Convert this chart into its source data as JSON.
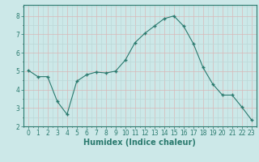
{
  "x": [
    0,
    1,
    2,
    3,
    4,
    5,
    6,
    7,
    8,
    9,
    10,
    11,
    12,
    13,
    14,
    15,
    16,
    17,
    18,
    19,
    20,
    21,
    22,
    23
  ],
  "y": [
    5.05,
    4.7,
    4.7,
    3.35,
    2.65,
    4.45,
    4.8,
    4.95,
    4.9,
    5.0,
    5.6,
    6.55,
    7.05,
    7.45,
    7.85,
    8.0,
    7.45,
    6.5,
    5.2,
    4.3,
    3.7,
    3.7,
    3.05,
    2.35
  ],
  "line_color": "#2a7a6e",
  "marker": "+",
  "marker_size": 3.5,
  "bg_color": "#cce8e8",
  "grid_color_major": "#d8b8b8",
  "grid_color_minor": "#bcd8d8",
  "xlabel": "Humidex (Indice chaleur)",
  "xlim": [
    -0.5,
    23.5
  ],
  "ylim": [
    2.0,
    8.6
  ],
  "yticks": [
    2,
    3,
    4,
    5,
    6,
    7,
    8
  ],
  "xticks": [
    0,
    1,
    2,
    3,
    4,
    5,
    6,
    7,
    8,
    9,
    10,
    11,
    12,
    13,
    14,
    15,
    16,
    17,
    18,
    19,
    20,
    21,
    22,
    23
  ],
  "tick_fontsize": 5.5,
  "xlabel_fontsize": 7.0,
  "spine_color": "#2a7a6e",
  "title_color": "#2a7a6e"
}
